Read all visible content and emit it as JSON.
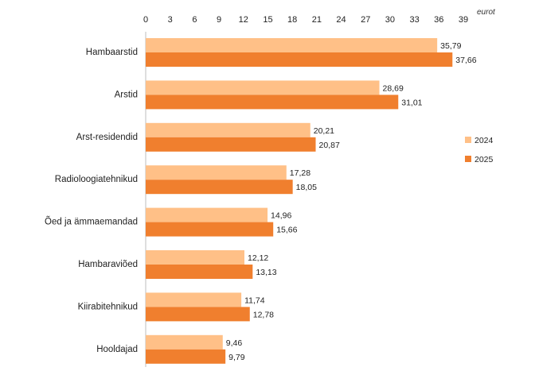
{
  "chart_data": {
    "type": "bar",
    "orientation": "horizontal",
    "unit_label": "eurot",
    "categories": [
      "Hambaarstid",
      "Arstid",
      "Arst-residendid",
      "Radioloogiatehnikud",
      "Õed ja ämmaemandad",
      "Hambaraviõed",
      "Kiirabitehnikud",
      "Hooldajad"
    ],
    "series": [
      {
        "name": "2024",
        "color": "#ffc087",
        "values": [
          35.79,
          28.69,
          20.21,
          17.28,
          14.96,
          12.12,
          11.74,
          9.46
        ],
        "labels": [
          "35,79",
          "28,69",
          "20,21",
          "17,28",
          "14,96",
          "12,12",
          "11,74",
          "9,46"
        ]
      },
      {
        "name": "2025",
        "color": "#f07f2e",
        "values": [
          37.66,
          31.01,
          20.87,
          18.05,
          15.66,
          13.13,
          12.78,
          9.79
        ],
        "labels": [
          "37,66",
          "31,01",
          "20,87",
          "18,05",
          "15,66",
          "13,13",
          "12,78",
          "9,79"
        ]
      }
    ],
    "x_ticks": [
      0,
      3,
      6,
      9,
      12,
      15,
      18,
      21,
      24,
      27,
      30,
      33,
      36,
      39
    ],
    "xlim": [
      0,
      39
    ],
    "axis_position": "top",
    "grid": false,
    "legend_position": "right"
  }
}
